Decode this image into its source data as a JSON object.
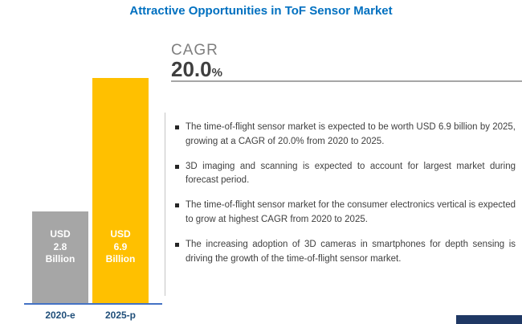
{
  "title": "Attractive Opportunities in ToF Sensor Market",
  "chart_data": {
    "type": "bar",
    "categories": [
      "2020-e",
      "2025-p"
    ],
    "values": [
      2.8,
      6.9
    ],
    "unit": "USD Billion",
    "bar_labels": [
      [
        "USD",
        "2.8",
        "Billion"
      ],
      [
        "USD",
        "6.9",
        "Billion"
      ]
    ],
    "bar_colors": [
      "#A6A6A6",
      "#FFC000"
    ],
    "ylim": [
      0,
      6.9
    ],
    "grid": false,
    "legend": false
  },
  "cagr": {
    "label": "CAGR",
    "value": "20.0",
    "percent_sign": "%"
  },
  "bullets": [
    "The time-of-flight sensor market is expected to be worth USD 6.9 billion by 2025, growing at a CAGR of 20.0% from 2020 to 2025.",
    "3D imaging and scanning is expected to account for largest market during forecast period.",
    "The time-of-flight sensor market for the consumer electronics vertical is expected to grow at highest CAGR from 2020 to 2025.",
    "The increasing adoption of 3D cameras in smartphones for depth sensing is driving the growth of the time-of-flight sensor market."
  ],
  "colors": {
    "title": "#0070C0",
    "cagr_label": "#7F7F7F",
    "cagr_value": "#3F3F3F",
    "divider": "#A6A6A6",
    "bullet_text": "#404040",
    "brand_box": "#1F3864",
    "axis": "#4472C4",
    "category_label": "#1F4E79"
  }
}
